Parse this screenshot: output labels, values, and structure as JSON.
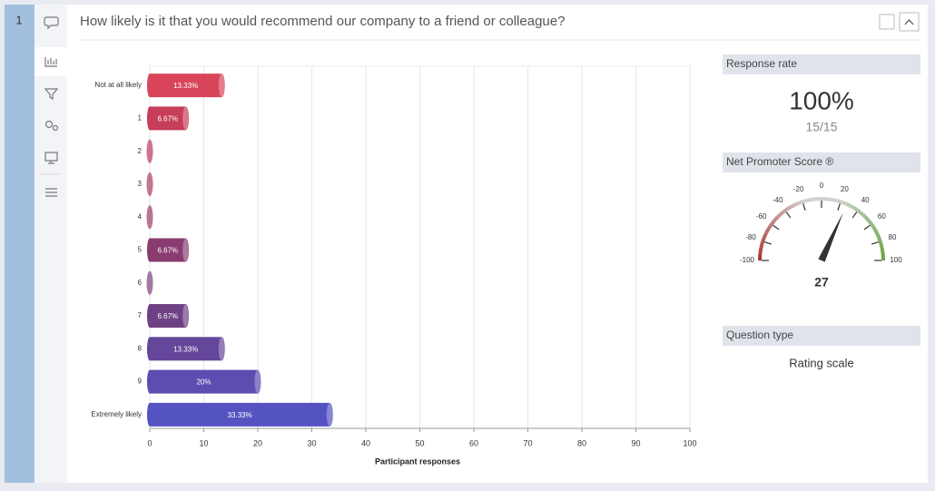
{
  "question": {
    "number": "1",
    "title": "How likely is it that you would recommend our company to a friend or colleague?"
  },
  "chart_data": {
    "type": "bar",
    "orientation": "horizontal",
    "categories": [
      "Not at all likely",
      "1",
      "2",
      "3",
      "4",
      "5",
      "6",
      "7",
      "8",
      "9",
      "Extremely likely"
    ],
    "values": [
      13.33,
      6.67,
      0,
      0,
      0,
      6.67,
      0,
      6.67,
      13.33,
      20,
      33.33
    ],
    "value_labels": [
      "13.33%",
      "6.67%",
      null,
      null,
      null,
      "6.67%",
      null,
      "6.67%",
      "13.33%",
      "20%",
      "33.33%"
    ],
    "colors": [
      "#d8455a",
      "#c63e58",
      "#b63a5c",
      "#a63a62",
      "#983b68",
      "#8a3c70",
      "#7c3e7a",
      "#6e4184",
      "#64479a",
      "#5c4db0",
      "#5553c2"
    ],
    "xlim": [
      0,
      100
    ],
    "xticks": [
      0,
      10,
      20,
      30,
      40,
      50,
      60,
      70,
      80,
      90,
      100
    ],
    "xlabel": "Participant responses",
    "grid": true
  },
  "response_rate": {
    "title": "Response rate",
    "value": "100%",
    "count": "15/15"
  },
  "nps": {
    "title": "Net Promoter Score ®",
    "type": "gauge",
    "value": 27,
    "range": [
      -100,
      100
    ],
    "ticks": [
      -100,
      -80,
      -60,
      -40,
      -20,
      0,
      20,
      40,
      60,
      80,
      100
    ]
  },
  "question_type": {
    "title": "Question type",
    "value": "Rating scale"
  }
}
